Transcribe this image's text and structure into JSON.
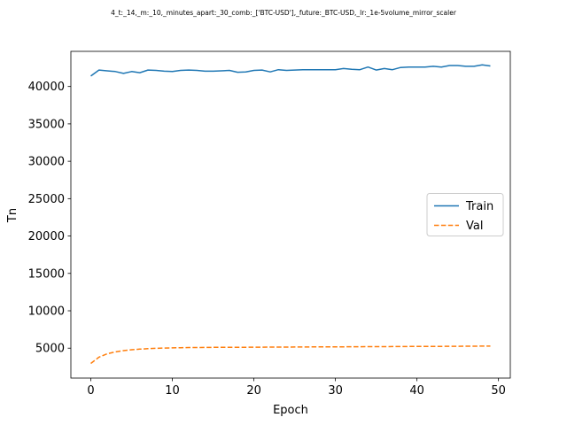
{
  "chart_data": {
    "type": "line",
    "title": "4_t:_14,_m:_10,_minutes_apart:_30_comb:_['BTC-USD'],_future:_BTC-USD,_lr:_1e-5volume_mirror_scaler",
    "xlabel": "Epoch",
    "ylabel": "Tn",
    "xlim": [
      -2.45,
      51.45
    ],
    "ylim": [
      1000,
      44700
    ],
    "xticks": [
      0,
      10,
      20,
      30,
      40,
      50
    ],
    "yticks": [
      5000,
      10000,
      15000,
      20000,
      25000,
      30000,
      35000,
      40000
    ],
    "grid": false,
    "legend_position": "center-right",
    "series": [
      {
        "name": "Train",
        "color": "#1f77b4",
        "line_style": "solid",
        "x": [
          0,
          1,
          2,
          3,
          4,
          5,
          6,
          7,
          8,
          9,
          10,
          11,
          12,
          13,
          14,
          15,
          16,
          17,
          18,
          19,
          20,
          21,
          22,
          23,
          24,
          25,
          26,
          27,
          28,
          29,
          30,
          31,
          32,
          33,
          34,
          35,
          36,
          37,
          38,
          39,
          40,
          41,
          42,
          43,
          44,
          45,
          46,
          47,
          48,
          49
        ],
        "values": [
          41400,
          42200,
          42100,
          42000,
          41750,
          42000,
          41850,
          42200,
          42150,
          42050,
          42000,
          42150,
          42200,
          42150,
          42050,
          42050,
          42100,
          42150,
          41900,
          41950,
          42150,
          42200,
          41950,
          42250,
          42150,
          42200,
          42250,
          42250,
          42250,
          42250,
          42250,
          42400,
          42300,
          42250,
          42600,
          42200,
          42400,
          42250,
          42550,
          42600,
          42600,
          42600,
          42700,
          42600,
          42800,
          42800,
          42700,
          42700,
          42900,
          42750
        ]
      },
      {
        "name": "Val",
        "color": "#ff7f0e",
        "line_style": "dashed",
        "x": [
          0,
          1,
          2,
          3,
          4,
          5,
          6,
          7,
          8,
          9,
          10,
          11,
          12,
          13,
          14,
          15,
          16,
          17,
          18,
          19,
          20,
          21,
          22,
          23,
          24,
          25,
          26,
          27,
          28,
          29,
          30,
          31,
          32,
          33,
          34,
          35,
          36,
          37,
          38,
          39,
          40,
          41,
          42,
          43,
          44,
          45,
          46,
          47,
          48,
          49
        ],
        "values": [
          2950,
          3800,
          4250,
          4500,
          4670,
          4790,
          4870,
          4930,
          4980,
          5010,
          5040,
          5060,
          5080,
          5090,
          5100,
          5105,
          5110,
          5115,
          5120,
          5125,
          5130,
          5135,
          5140,
          5145,
          5150,
          5155,
          5160,
          5165,
          5170,
          5175,
          5180,
          5185,
          5190,
          5195,
          5200,
          5205,
          5210,
          5215,
          5220,
          5225,
          5230,
          5235,
          5240,
          5245,
          5250,
          5255,
          5260,
          5265,
          5270,
          5275
        ]
      }
    ]
  }
}
